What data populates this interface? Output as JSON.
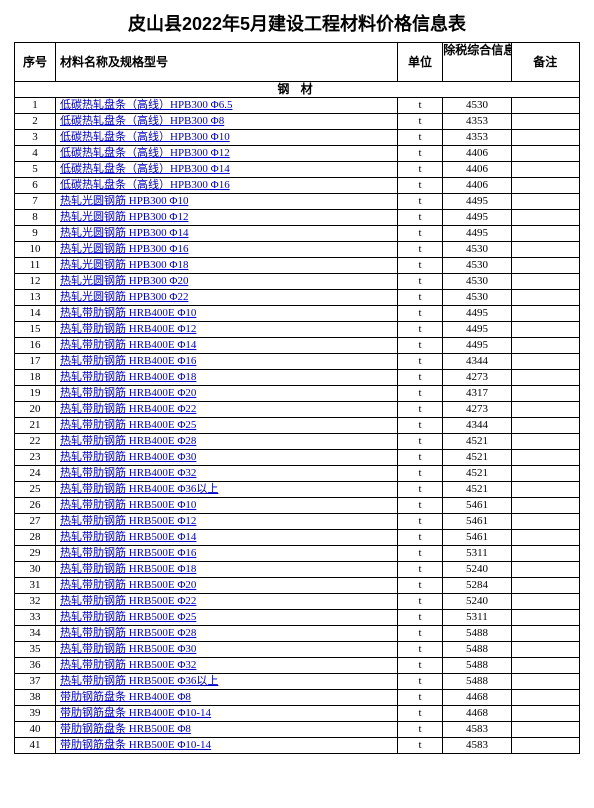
{
  "title": "皮山县2022年5月建设工程材料价格信息表",
  "columns": {
    "seq": "序号",
    "name": "材料名称及规格型号",
    "unit": "单位",
    "price": "除税综合信息价",
    "note": "备注"
  },
  "section_header": "钢 材",
  "link_color": "#0000cc",
  "rows": [
    {
      "seq": "1",
      "name": "低碳热轧盘条（高线）HPB300 Φ6.5",
      "unit": "t",
      "price": "4530",
      "note": ""
    },
    {
      "seq": "2",
      "name": "低碳热轧盘条（高线）HPB300 Φ8",
      "unit": "t",
      "price": "4353",
      "note": ""
    },
    {
      "seq": "3",
      "name": "低碳热轧盘条（高线）HPB300 Φ10",
      "unit": "t",
      "price": "4353",
      "note": ""
    },
    {
      "seq": "4",
      "name": "低碳热轧盘条（高线）HPB300 Φ12",
      "unit": "t",
      "price": "4406",
      "note": ""
    },
    {
      "seq": "5",
      "name": "低碳热轧盘条（高线）HPB300 Φ14",
      "unit": "t",
      "price": "4406",
      "note": ""
    },
    {
      "seq": "6",
      "name": "低碳热轧盘条（高线）HPB300 Φ16",
      "unit": "t",
      "price": "4406",
      "note": ""
    },
    {
      "seq": "7",
      "name": "热轧光圆钢筋   HPB300 Φ10",
      "unit": "t",
      "price": "4495",
      "note": ""
    },
    {
      "seq": "8",
      "name": "热轧光圆钢筋   HPB300 Φ12",
      "unit": "t",
      "price": "4495",
      "note": ""
    },
    {
      "seq": "9",
      "name": "热轧光圆钢筋   HPB300 Φ14",
      "unit": "t",
      "price": "4495",
      "note": ""
    },
    {
      "seq": "10",
      "name": "热轧光圆钢筋   HPB300 Φ16",
      "unit": "t",
      "price": "4530",
      "note": ""
    },
    {
      "seq": "11",
      "name": "热轧光圆钢筋   HPB300 Φ18",
      "unit": "t",
      "price": "4530",
      "note": ""
    },
    {
      "seq": "12",
      "name": "热轧光圆钢筋   HPB300 Φ20",
      "unit": "t",
      "price": "4530",
      "note": ""
    },
    {
      "seq": "13",
      "name": "热轧光圆钢筋   HPB300 Φ22",
      "unit": "t",
      "price": "4530",
      "note": ""
    },
    {
      "seq": "14",
      "name": "热轧带肋钢筋  HRB400E Φ10",
      "unit": "t",
      "price": "4495",
      "note": ""
    },
    {
      "seq": "15",
      "name": "热轧带肋钢筋  HRB400E Φ12",
      "unit": "t",
      "price": "4495",
      "note": ""
    },
    {
      "seq": "16",
      "name": "热轧带肋钢筋  HRB400E Φ14",
      "unit": "t",
      "price": "4495",
      "note": ""
    },
    {
      "seq": "17",
      "name": "热轧带肋钢筋  HRB400E Φ16",
      "unit": "t",
      "price": "4344",
      "note": ""
    },
    {
      "seq": "18",
      "name": "热轧带肋钢筋  HRB400E Φ18",
      "unit": "t",
      "price": "4273",
      "note": ""
    },
    {
      "seq": "19",
      "name": "热轧带肋钢筋  HRB400E Φ20",
      "unit": "t",
      "price": "4317",
      "note": ""
    },
    {
      "seq": "20",
      "name": "热轧带肋钢筋  HRB400E Φ22",
      "unit": "t",
      "price": "4273",
      "note": ""
    },
    {
      "seq": "21",
      "name": "热轧带肋钢筋  HRB400E Φ25",
      "unit": "t",
      "price": "4344",
      "note": ""
    },
    {
      "seq": "22",
      "name": "热轧带肋钢筋  HRB400E Φ28",
      "unit": "t",
      "price": "4521",
      "note": ""
    },
    {
      "seq": "23",
      "name": "热轧带肋钢筋  HRB400E Φ30",
      "unit": "t",
      "price": "4521",
      "note": ""
    },
    {
      "seq": "24",
      "name": "热轧带肋钢筋  HRB400E Φ32",
      "unit": "t",
      "price": "4521",
      "note": ""
    },
    {
      "seq": "25",
      "name": "热轧带肋钢筋  HRB400E Φ36以上",
      "unit": "t",
      "price": "4521",
      "note": ""
    },
    {
      "seq": "26",
      "name": "热轧带肋钢筋  HRB500E Φ10",
      "unit": "t",
      "price": "5461",
      "note": ""
    },
    {
      "seq": "27",
      "name": "热轧带肋钢筋  HRB500E Φ12",
      "unit": "t",
      "price": "5461",
      "note": ""
    },
    {
      "seq": "28",
      "name": "热轧带肋钢筋  HRB500E Φ14",
      "unit": "t",
      "price": "5461",
      "note": ""
    },
    {
      "seq": "29",
      "name": "热轧带肋钢筋  HRB500E Φ16",
      "unit": "t",
      "price": "5311",
      "note": ""
    },
    {
      "seq": "30",
      "name": "热轧带肋钢筋  HRB500E Φ18",
      "unit": "t",
      "price": "5240",
      "note": ""
    },
    {
      "seq": "31",
      "name": "热轧带肋钢筋  HRB500E Φ20",
      "unit": "t",
      "price": "5284",
      "note": ""
    },
    {
      "seq": "32",
      "name": "热轧带肋钢筋  HRB500E Φ22",
      "unit": "t",
      "price": "5240",
      "note": ""
    },
    {
      "seq": "33",
      "name": "热轧带肋钢筋  HRB500E Φ25",
      "unit": "t",
      "price": "5311",
      "note": ""
    },
    {
      "seq": "34",
      "name": "热轧带肋钢筋  HRB500E Φ28",
      "unit": "t",
      "price": "5488",
      "note": ""
    },
    {
      "seq": "35",
      "name": "热轧带肋钢筋  HRB500E Φ30",
      "unit": "t",
      "price": "5488",
      "note": ""
    },
    {
      "seq": "36",
      "name": "热轧带肋钢筋  HRB500E Φ32",
      "unit": "t",
      "price": "5488",
      "note": ""
    },
    {
      "seq": "37",
      "name": "热轧带肋钢筋  HRB500E Φ36以上",
      "unit": "t",
      "price": "5488",
      "note": ""
    },
    {
      "seq": "38",
      "name": "带肋钢筋盘条  HRB400E Φ8",
      "unit": "t",
      "price": "4468",
      "note": ""
    },
    {
      "seq": "39",
      "name": "带肋钢筋盘条  HRB400E Φ10-14",
      "unit": "t",
      "price": "4468",
      "note": ""
    },
    {
      "seq": "40",
      "name": "带肋钢筋盘条  HRB500E Φ8",
      "unit": "t",
      "price": "4583",
      "note": ""
    },
    {
      "seq": "41",
      "name": "带肋钢筋盘条  HRB500E Φ10-14",
      "unit": "t",
      "price": "4583",
      "note": ""
    }
  ]
}
